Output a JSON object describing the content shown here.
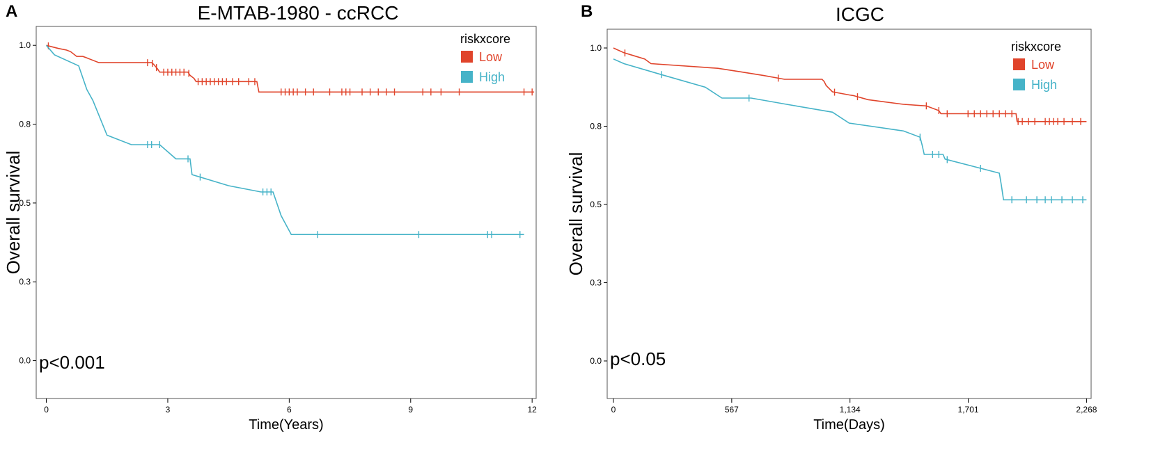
{
  "chart_data": [
    {
      "type": "line",
      "panel_label": "A",
      "title": "E-MTAB-1980 - ccRCC",
      "xlabel": "Time(Years)",
      "ylabel": "Overall survival",
      "xlim": [
        -0.25,
        12.1
      ],
      "ylim": [
        -0.12,
        1.06
      ],
      "x_ticks": [
        0,
        3,
        6,
        9,
        12
      ],
      "x_tick_labels": [
        "0",
        "3",
        "6",
        "9",
        "12"
      ],
      "y_ticks": [
        0.0,
        0.25,
        0.5,
        0.75,
        1.0
      ],
      "y_tick_labels": [
        "0.0",
        "0.3",
        "0.5",
        "0.8",
        "1.0"
      ],
      "annotation": "p<0.001",
      "legend_title": "riskxcore",
      "series": [
        {
          "name": "Low",
          "color": "#e0442b",
          "x": [
            0,
            0.3,
            0.5,
            0.6,
            0.75,
            0.9,
            1.0,
            1.3,
            2.6,
            2.65,
            2.75,
            2.8,
            3.5,
            3.55,
            3.6,
            3.65,
            3.7,
            5.2,
            5.25,
            12.05
          ],
          "y": [
            1.0,
            0.99,
            0.985,
            0.98,
            0.965,
            0.965,
            0.96,
            0.945,
            0.945,
            0.94,
            0.925,
            0.915,
            0.915,
            0.905,
            0.9,
            0.895,
            0.885,
            0.885,
            0.852,
            0.852
          ],
          "censor_x": [
            0.05,
            2.5,
            2.62,
            2.72,
            2.9,
            3.0,
            3.1,
            3.2,
            3.3,
            3.4,
            3.52,
            3.75,
            3.85,
            3.95,
            4.05,
            4.15,
            4.25,
            4.35,
            4.45,
            4.6,
            4.75,
            5.0,
            5.15,
            5.8,
            5.9,
            6.0,
            6.1,
            6.2,
            6.4,
            6.6,
            7.0,
            7.3,
            7.4,
            7.5,
            7.8,
            8.0,
            8.2,
            8.4,
            8.6,
            9.3,
            9.5,
            9.75,
            10.2,
            11.8,
            12.0
          ]
        },
        {
          "name": "High",
          "color": "#46b3c8",
          "x": [
            0,
            0.2,
            0.8,
            1.0,
            1.15,
            1.5,
            2.1,
            2.8,
            3.2,
            3.55,
            3.6,
            4.5,
            5.3,
            5.6,
            5.8,
            6.05,
            11.8
          ],
          "y": [
            1.0,
            0.97,
            0.935,
            0.86,
            0.825,
            0.715,
            0.685,
            0.685,
            0.64,
            0.64,
            0.59,
            0.555,
            0.535,
            0.535,
            0.46,
            0.4,
            0.4
          ],
          "censor_x": [
            2.5,
            2.6,
            2.8,
            3.5,
            3.8,
            5.35,
            5.45,
            5.55,
            6.7,
            9.2,
            10.9,
            11.0,
            11.7
          ]
        }
      ]
    },
    {
      "type": "line",
      "panel_label": "B",
      "title": "ICGC",
      "xlabel": "Time(Days)",
      "ylabel": "Overall survival",
      "xlim": [
        -30,
        2290
      ],
      "ylim": [
        -0.12,
        1.06
      ],
      "x_ticks": [
        0,
        567,
        1134,
        1701,
        2268
      ],
      "x_tick_labels": [
        "0",
        "567",
        "1,134",
        "1,701",
        "2,268"
      ],
      "y_ticks": [
        0.0,
        0.25,
        0.5,
        0.75,
        1.0
      ],
      "y_tick_labels": [
        "0.0",
        "0.3",
        "0.5",
        "0.8",
        "1.0"
      ],
      "annotation": "p<0.05",
      "legend_title": "riskxcore",
      "series": [
        {
          "name": "Low",
          "color": "#e0442b",
          "x": [
            0,
            50,
            100,
            150,
            180,
            500,
            600,
            720,
            820,
            1000,
            1010,
            1020,
            1050,
            1130,
            1150,
            1220,
            1390,
            1500,
            1560,
            1570,
            1580,
            1930,
            1935,
            2268
          ],
          "y": [
            1.0,
            0.985,
            0.975,
            0.965,
            0.95,
            0.935,
            0.925,
            0.912,
            0.9,
            0.9,
            0.893,
            0.88,
            0.86,
            0.85,
            0.848,
            0.835,
            0.82,
            0.815,
            0.8,
            0.79,
            0.79,
            0.79,
            0.765,
            0.765
          ],
          "censor_x": [
            55,
            790,
            1060,
            1170,
            1500,
            1560,
            1600,
            1700,
            1730,
            1760,
            1790,
            1820,
            1850,
            1880,
            1910,
            1940,
            1960,
            1990,
            2020,
            2070,
            2090,
            2110,
            2130,
            2160,
            2200,
            2240
          ]
        },
        {
          "name": "High",
          "color": "#46b3c8",
          "x": [
            0,
            50,
            230,
            440,
            520,
            660,
            830,
            1050,
            1130,
            1390,
            1470,
            1480,
            1490,
            1580,
            1590,
            1850,
            1860,
            1870,
            2268
          ],
          "y": [
            0.965,
            0.95,
            0.915,
            0.875,
            0.84,
            0.84,
            0.82,
            0.795,
            0.76,
            0.735,
            0.715,
            0.69,
            0.66,
            0.66,
            0.645,
            0.6,
            0.56,
            0.515,
            0.515
          ],
          "censor_x": [
            230,
            650,
            1470,
            1530,
            1560,
            1600,
            1760,
            1910,
            1980,
            2030,
            2070,
            2100,
            2150,
            2200,
            2250
          ]
        }
      ]
    }
  ]
}
